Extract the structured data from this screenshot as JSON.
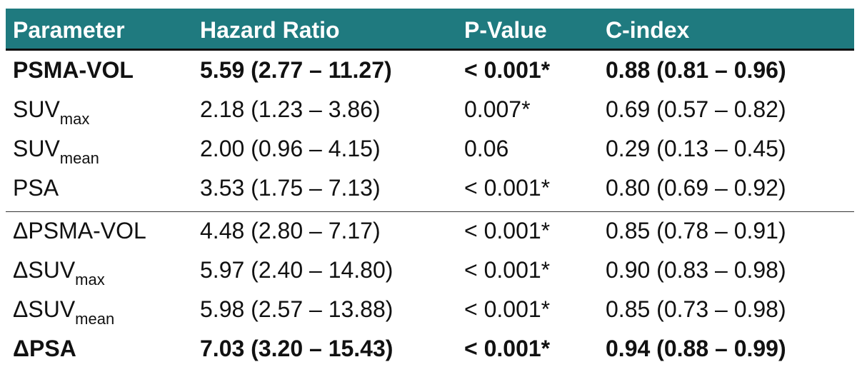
{
  "table": {
    "columns": [
      "Parameter",
      "Hazard Ratio",
      "P-Value",
      "C-index"
    ],
    "groups": [
      {
        "rows": [
          {
            "parameter": "PSMA-VOL",
            "hazard_ratio": "5.59 (2.77 – 11.27)",
            "p_value": "< 0.001*",
            "c_index": "0.88 (0.81 – 0.96)",
            "bold": true
          },
          {
            "parameter": "SUV",
            "parameter_sub": "max",
            "hazard_ratio": "2.18 (1.23 – 3.86)",
            "p_value": "0.007*",
            "c_index": "0.69 (0.57 – 0.82)",
            "bold": false
          },
          {
            "parameter": "SUV",
            "parameter_sub": "mean",
            "hazard_ratio": "2.00 (0.96 – 4.15)",
            "p_value": "0.06",
            "c_index": "0.29 (0.13 – 0.45)",
            "bold": false
          },
          {
            "parameter": "PSA",
            "hazard_ratio": "3.53 (1.75 – 7.13)",
            "p_value": "< 0.001*",
            "c_index": "0.80 (0.69 – 0.92)",
            "bold": false
          }
        ]
      },
      {
        "rows": [
          {
            "parameter": "ΔPSMA-VOL",
            "hazard_ratio": "4.48 (2.80 – 7.17)",
            "p_value": "< 0.001*",
            "c_index": "0.85 (0.78 – 0.91)",
            "bold": false
          },
          {
            "parameter": "ΔSUV",
            "parameter_sub": "max",
            "hazard_ratio": "5.97 (2.40 – 14.80)",
            "p_value": "< 0.001*",
            "c_index": "0.90 (0.83 – 0.98)",
            "bold": false
          },
          {
            "parameter": "ΔSUV",
            "parameter_sub": "mean",
            "hazard_ratio": "5.98 (2.57 – 13.88)",
            "p_value": "< 0.001*",
            "c_index": "0.85 (0.73 – 0.98)",
            "bold": false
          },
          {
            "parameter": "ΔPSA",
            "hazard_ratio": "7.03 (3.20 – 15.43)",
            "p_value": "< 0.001*",
            "c_index": "0.94 (0.88 – 0.99)",
            "bold": true
          }
        ]
      }
    ]
  }
}
